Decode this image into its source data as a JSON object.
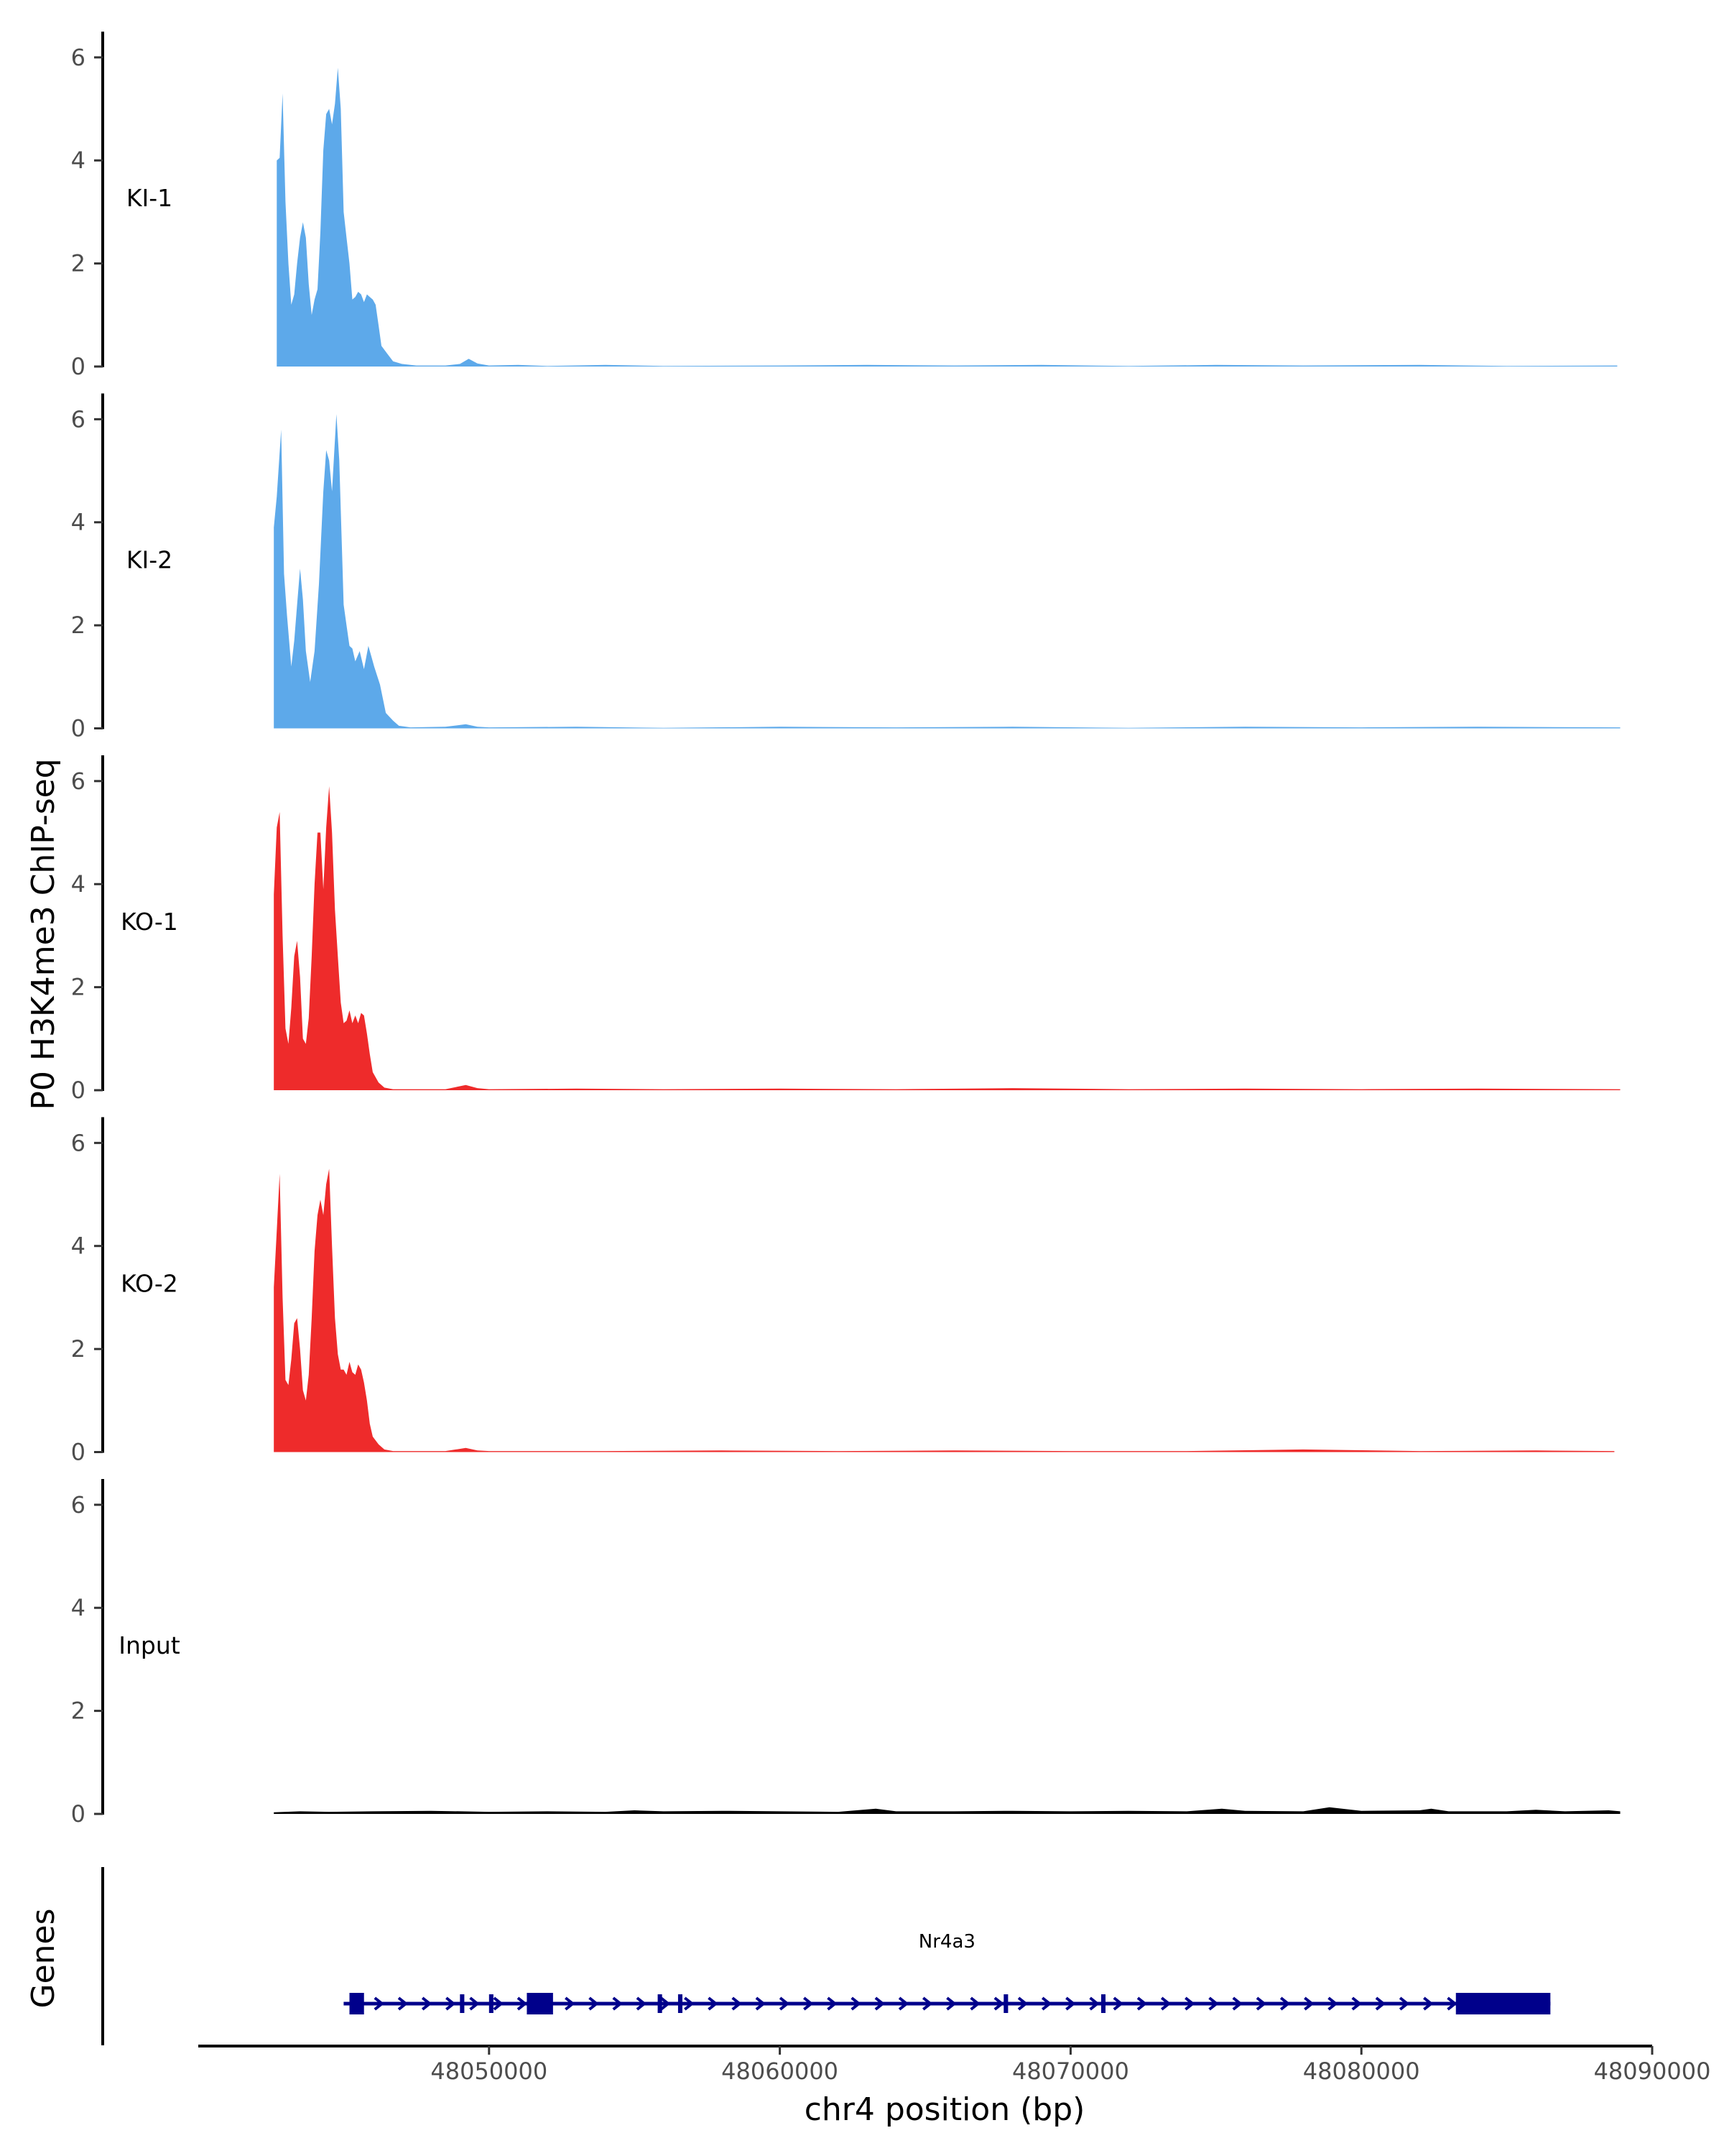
{
  "y_axis_title": "P0 H3K4me3 ChIP-seq",
  "genes_label": "Genes",
  "chart_data": {
    "type": "area",
    "title": "",
    "xlabel": "chr4 position (bp)",
    "ylabel": "P0 H3K4me3 ChIP-seq",
    "xlim": [
      48040000,
      48090000
    ],
    "ylim": [
      0,
      6.5
    ],
    "y_ticks": [
      0,
      2,
      4,
      6
    ],
    "x_ticks": [
      48050000,
      48060000,
      48070000,
      48080000,
      48090000
    ],
    "x_tick_labels": [
      "48050000",
      "48060000",
      "48070000",
      "48080000",
      "48090000"
    ],
    "tracks": [
      {
        "name": "KI-1",
        "color": "#5DA9EA",
        "x_end": 48088800,
        "points": [
          [
            48042700,
            0
          ],
          [
            48042700,
            4.0
          ],
          [
            48042800,
            4.05
          ],
          [
            48042900,
            5.3
          ],
          [
            48043000,
            3.2
          ],
          [
            48043100,
            2.0
          ],
          [
            48043200,
            1.2
          ],
          [
            48043300,
            1.4
          ],
          [
            48043400,
            2.0
          ],
          [
            48043500,
            2.5
          ],
          [
            48043600,
            2.8
          ],
          [
            48043700,
            2.5
          ],
          [
            48043800,
            1.6
          ],
          [
            48043900,
            1.0
          ],
          [
            48044000,
            1.3
          ],
          [
            48044100,
            1.5
          ],
          [
            48044200,
            2.6
          ],
          [
            48044300,
            4.2
          ],
          [
            48044400,
            4.9
          ],
          [
            48044500,
            5.0
          ],
          [
            48044600,
            4.7
          ],
          [
            48044700,
            5.1
          ],
          [
            48044800,
            5.8
          ],
          [
            48044900,
            5.0
          ],
          [
            48045000,
            3.0
          ],
          [
            48045100,
            2.5
          ],
          [
            48045200,
            2.0
          ],
          [
            48045300,
            1.3
          ],
          [
            48045400,
            1.35
          ],
          [
            48045500,
            1.45
          ],
          [
            48045600,
            1.4
          ],
          [
            48045700,
            1.25
          ],
          [
            48045800,
            1.4
          ],
          [
            48045900,
            1.35
          ],
          [
            48046000,
            1.3
          ],
          [
            48046100,
            1.2
          ],
          [
            48046200,
            0.8
          ],
          [
            48046300,
            0.4
          ],
          [
            48046500,
            0.25
          ],
          [
            48046700,
            0.1
          ],
          [
            48047000,
            0.05
          ],
          [
            48047500,
            0.02
          ],
          [
            48048500,
            0.02
          ],
          [
            48049000,
            0.05
          ],
          [
            48049300,
            0.15
          ],
          [
            48049600,
            0.06
          ],
          [
            48050000,
            0.02
          ],
          [
            48051000,
            0.03
          ],
          [
            48052000,
            0.01
          ],
          [
            48054000,
            0.03
          ],
          [
            48056000,
            0.01
          ],
          [
            48060000,
            0.02
          ],
          [
            48063000,
            0.03
          ],
          [
            48066000,
            0.02
          ],
          [
            48069000,
            0.03
          ],
          [
            48072000,
            0.01
          ],
          [
            48075000,
            0.03
          ],
          [
            48078000,
            0.02
          ],
          [
            48082000,
            0.03
          ],
          [
            48085000,
            0.01
          ],
          [
            48088800,
            0.02
          ],
          [
            48088800,
            0
          ]
        ]
      },
      {
        "name": "KI-2",
        "color": "#5DA9EA",
        "x_end": 48088900,
        "points": [
          [
            48042600,
            0
          ],
          [
            48042600,
            3.9
          ],
          [
            48042700,
            4.5
          ],
          [
            48042850,
            5.8
          ],
          [
            48042950,
            3.0
          ],
          [
            48043050,
            2.2
          ],
          [
            48043200,
            1.2
          ],
          [
            48043300,
            1.7
          ],
          [
            48043400,
            2.4
          ],
          [
            48043500,
            3.1
          ],
          [
            48043600,
            2.5
          ],
          [
            48043700,
            1.5
          ],
          [
            48043850,
            0.9
          ],
          [
            48044000,
            1.5
          ],
          [
            48044150,
            2.8
          ],
          [
            48044300,
            4.6
          ],
          [
            48044400,
            5.4
          ],
          [
            48044500,
            5.2
          ],
          [
            48044600,
            4.6
          ],
          [
            48044750,
            6.1
          ],
          [
            48044850,
            5.2
          ],
          [
            48045000,
            2.4
          ],
          [
            48045100,
            2.0
          ],
          [
            48045200,
            1.6
          ],
          [
            48045300,
            1.55
          ],
          [
            48045400,
            1.3
          ],
          [
            48045550,
            1.5
          ],
          [
            48045700,
            1.15
          ],
          [
            48045850,
            1.6
          ],
          [
            48045950,
            1.4
          ],
          [
            48046050,
            1.2
          ],
          [
            48046250,
            0.85
          ],
          [
            48046450,
            0.3
          ],
          [
            48046700,
            0.15
          ],
          [
            48046900,
            0.05
          ],
          [
            48047300,
            0.02
          ],
          [
            48048500,
            0.03
          ],
          [
            48049200,
            0.08
          ],
          [
            48049600,
            0.03
          ],
          [
            48050000,
            0.02
          ],
          [
            48053000,
            0.03
          ],
          [
            48056000,
            0.01
          ],
          [
            48060000,
            0.03
          ],
          [
            48064000,
            0.02
          ],
          [
            48068000,
            0.03
          ],
          [
            48072000,
            0.01
          ],
          [
            48076000,
            0.03
          ],
          [
            48080000,
            0.02
          ],
          [
            48084000,
            0.03
          ],
          [
            48088900,
            0.02
          ],
          [
            48088900,
            0
          ]
        ]
      },
      {
        "name": "KO-1",
        "color": "#EE2B2B",
        "x_end": 48088900,
        "points": [
          [
            48042600,
            0
          ],
          [
            48042600,
            3.8
          ],
          [
            48042700,
            5.1
          ],
          [
            48042800,
            5.4
          ],
          [
            48042900,
            3.0
          ],
          [
            48043000,
            1.2
          ],
          [
            48043100,
            0.9
          ],
          [
            48043200,
            1.6
          ],
          [
            48043300,
            2.6
          ],
          [
            48043400,
            2.9
          ],
          [
            48043500,
            2.2
          ],
          [
            48043600,
            1.0
          ],
          [
            48043700,
            0.9
          ],
          [
            48043800,
            1.4
          ],
          [
            48043900,
            2.6
          ],
          [
            48044000,
            4.0
          ],
          [
            48044100,
            5.0
          ],
          [
            48044200,
            5.0
          ],
          [
            48044300,
            3.9
          ],
          [
            48044400,
            5.1
          ],
          [
            48044500,
            5.9
          ],
          [
            48044600,
            5.0
          ],
          [
            48044700,
            3.5
          ],
          [
            48044800,
            2.6
          ],
          [
            48044900,
            1.7
          ],
          [
            48045000,
            1.3
          ],
          [
            48045100,
            1.35
          ],
          [
            48045200,
            1.55
          ],
          [
            48045300,
            1.3
          ],
          [
            48045400,
            1.45
          ],
          [
            48045500,
            1.3
          ],
          [
            48045600,
            1.5
          ],
          [
            48045700,
            1.45
          ],
          [
            48045800,
            1.1
          ],
          [
            48045900,
            0.7
          ],
          [
            48046000,
            0.35
          ],
          [
            48046200,
            0.15
          ],
          [
            48046400,
            0.05
          ],
          [
            48046700,
            0.02
          ],
          [
            48048500,
            0.02
          ],
          [
            48049200,
            0.1
          ],
          [
            48049600,
            0.04
          ],
          [
            48050000,
            0.02
          ],
          [
            48053000,
            0.03
          ],
          [
            48056000,
            0.02
          ],
          [
            48060000,
            0.03
          ],
          [
            48064000,
            0.02
          ],
          [
            48068000,
            0.04
          ],
          [
            48072000,
            0.02
          ],
          [
            48076000,
            0.03
          ],
          [
            48080000,
            0.02
          ],
          [
            48084000,
            0.03
          ],
          [
            48088900,
            0.02
          ],
          [
            48088900,
            0
          ]
        ]
      },
      {
        "name": "KO-2",
        "color": "#EE2B2B",
        "x_end": 48088700,
        "points": [
          [
            48042600,
            0
          ],
          [
            48042600,
            3.2
          ],
          [
            48042700,
            4.3
          ],
          [
            48042800,
            5.4
          ],
          [
            48042900,
            3.0
          ],
          [
            48043000,
            1.4
          ],
          [
            48043100,
            1.3
          ],
          [
            48043200,
            1.8
          ],
          [
            48043300,
            2.5
          ],
          [
            48043400,
            2.6
          ],
          [
            48043500,
            2.0
          ],
          [
            48043600,
            1.2
          ],
          [
            48043700,
            1.0
          ],
          [
            48043800,
            1.5
          ],
          [
            48043900,
            2.6
          ],
          [
            48044000,
            3.9
          ],
          [
            48044100,
            4.6
          ],
          [
            48044200,
            4.9
          ],
          [
            48044300,
            4.6
          ],
          [
            48044400,
            5.2
          ],
          [
            48044500,
            5.5
          ],
          [
            48044600,
            4.0
          ],
          [
            48044700,
            2.6
          ],
          [
            48044800,
            1.9
          ],
          [
            48044900,
            1.6
          ],
          [
            48045000,
            1.6
          ],
          [
            48045100,
            1.5
          ],
          [
            48045200,
            1.75
          ],
          [
            48045300,
            1.55
          ],
          [
            48045400,
            1.5
          ],
          [
            48045500,
            1.7
          ],
          [
            48045600,
            1.6
          ],
          [
            48045700,
            1.35
          ],
          [
            48045800,
            1.0
          ],
          [
            48045900,
            0.55
          ],
          [
            48046000,
            0.3
          ],
          [
            48046200,
            0.15
          ],
          [
            48046400,
            0.05
          ],
          [
            48046700,
            0.02
          ],
          [
            48048500,
            0.02
          ],
          [
            48049200,
            0.08
          ],
          [
            48049600,
            0.03
          ],
          [
            48050000,
            0.02
          ],
          [
            48054000,
            0.02
          ],
          [
            48058000,
            0.03
          ],
          [
            48062000,
            0.02
          ],
          [
            48066000,
            0.03
          ],
          [
            48070000,
            0.02
          ],
          [
            48074000,
            0.02
          ],
          [
            48078000,
            0.05
          ],
          [
            48082000,
            0.02
          ],
          [
            48086000,
            0.03
          ],
          [
            48088700,
            0.02
          ],
          [
            48088700,
            0
          ]
        ]
      },
      {
        "name": "Input",
        "color": "#000000",
        "x_end": 48088900,
        "points": [
          [
            48042600,
            0
          ],
          [
            48042600,
            0.03
          ],
          [
            48043500,
            0.05
          ],
          [
            48044500,
            0.04
          ],
          [
            48046000,
            0.05
          ],
          [
            48048000,
            0.06
          ],
          [
            48050000,
            0.04
          ],
          [
            48052000,
            0.05
          ],
          [
            48054000,
            0.04
          ],
          [
            48055000,
            0.07
          ],
          [
            48056000,
            0.05
          ],
          [
            48058000,
            0.06
          ],
          [
            48060000,
            0.05
          ],
          [
            48062000,
            0.04
          ],
          [
            48063300,
            0.1
          ],
          [
            48064000,
            0.05
          ],
          [
            48066000,
            0.05
          ],
          [
            48068000,
            0.06
          ],
          [
            48070000,
            0.05
          ],
          [
            48072000,
            0.06
          ],
          [
            48074000,
            0.05
          ],
          [
            48075200,
            0.1
          ],
          [
            48076000,
            0.06
          ],
          [
            48078000,
            0.05
          ],
          [
            48078900,
            0.13
          ],
          [
            48080000,
            0.06
          ],
          [
            48082000,
            0.07
          ],
          [
            48082400,
            0.1
          ],
          [
            48083000,
            0.05
          ],
          [
            48085000,
            0.05
          ],
          [
            48086000,
            0.08
          ],
          [
            48087000,
            0.05
          ],
          [
            48088500,
            0.07
          ],
          [
            48088900,
            0.05
          ],
          [
            48088900,
            0
          ]
        ]
      }
    ],
    "gene": {
      "name": "Nr4a3",
      "color": "#00008B",
      "strand": "+",
      "start": 48045000,
      "end": 48086500,
      "exons": [
        [
          48045200,
          48045700
        ],
        [
          48049000,
          48049150
        ],
        [
          48050000,
          48050150
        ],
        [
          48051300,
          48052200
        ],
        [
          48055800,
          48055950
        ],
        [
          48056500,
          48056650
        ],
        [
          48067700,
          48067850
        ],
        [
          48071050,
          48071200
        ],
        [
          48083250,
          48086500
        ]
      ]
    }
  }
}
